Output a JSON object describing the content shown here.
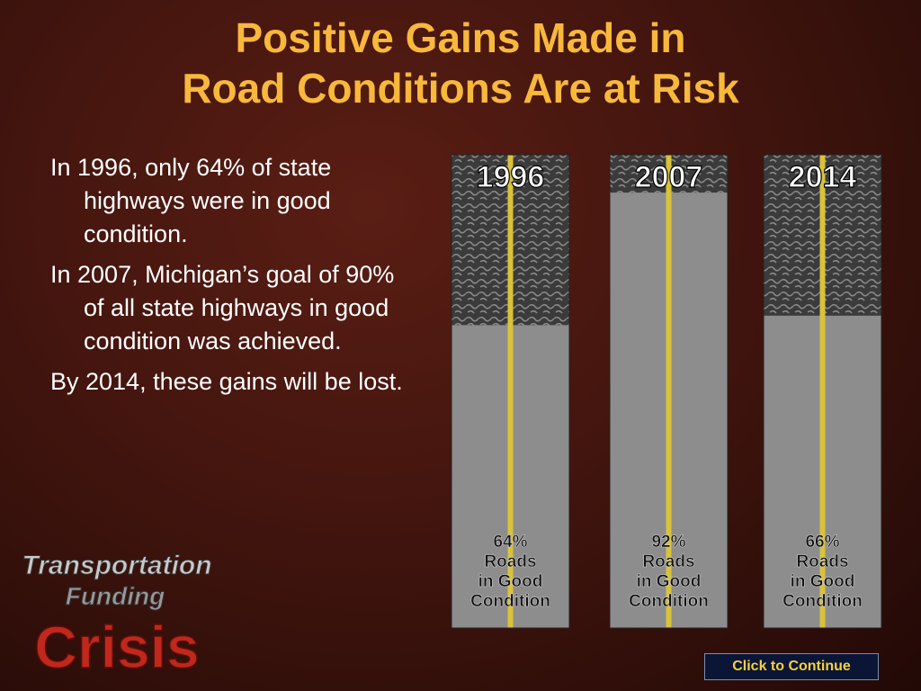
{
  "title": [
    "Positive Gains Made in",
    "Road Conditions Are at Risk"
  ],
  "bullets": [
    "In 1996, only 64% of state highways were in good condition.",
    "In 2007, Michigan’s goal of 90% of all state highways in good condition was achieved.",
    "By 2014, these gains will be lost."
  ],
  "roads": {
    "ylim": [
      0,
      100
    ],
    "columns": [
      {
        "year": "1996",
        "value": 64,
        "value_label": "64%",
        "caption": [
          "Roads",
          "in Good",
          "Condition"
        ]
      },
      {
        "year": "2007",
        "value": 92,
        "value_label": "92%",
        "caption": [
          "Roads",
          "in Good",
          "Condition"
        ]
      },
      {
        "year": "2014",
        "value": 66,
        "value_label": "66%",
        "caption": [
          "Roads",
          "in Good",
          "Condition"
        ]
      }
    ]
  },
  "logo": [
    "Transportation",
    "Funding",
    "Crisis"
  ],
  "button": "Click to Continue"
}
